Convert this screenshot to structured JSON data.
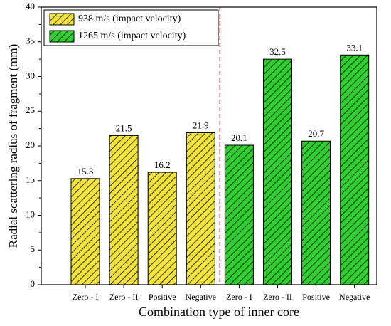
{
  "chart_data": {
    "type": "bar",
    "x_label": "Combination type of inner core",
    "y_label": "Radial scattering radius of fragment (mm)",
    "categories": [
      "Zero - I",
      "Zero - II",
      "Positive",
      "Negative",
      "Zero - I",
      "Zero - II",
      "Positive",
      "Negative"
    ],
    "series": [
      {
        "name": "938 m/s (impact velocity)",
        "color": "#f2e33a",
        "values": [
          15.3,
          21.5,
          16.2,
          21.9,
          null,
          null,
          null,
          null
        ]
      },
      {
        "name": "1265 m/s (impact velocity)",
        "color": "#2fcf2f",
        "values": [
          null,
          null,
          null,
          null,
          20.1,
          32.5,
          20.7,
          33.1
        ]
      }
    ],
    "ylim": [
      0,
      40
    ],
    "yticks": [
      0,
      5,
      10,
      15,
      20,
      25,
      30,
      35,
      40
    ],
    "legend": "upper left"
  }
}
